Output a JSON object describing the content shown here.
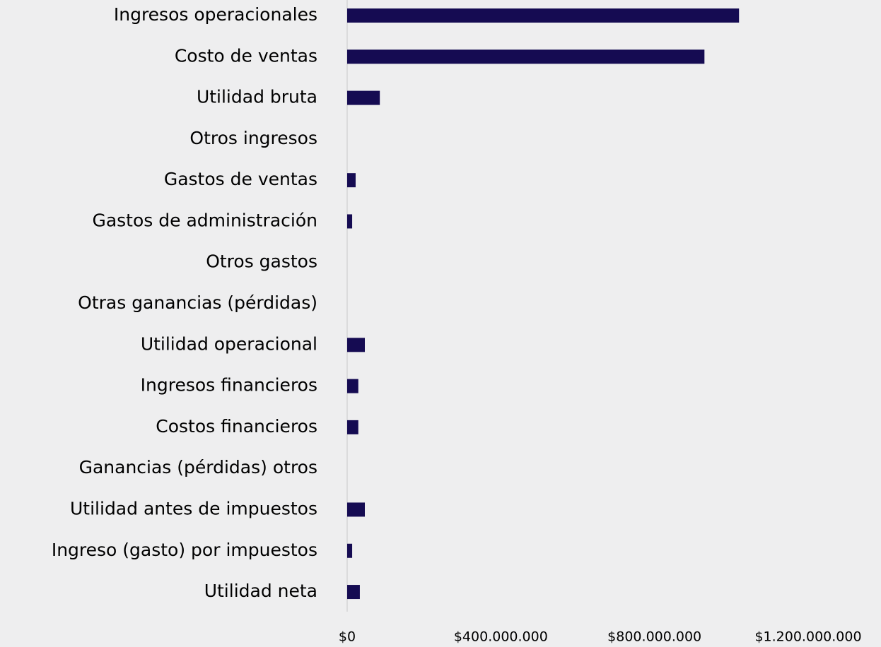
{
  "chart_data": {
    "type": "hbar",
    "categories": [
      "Ingresos operacionales",
      "Costo de ventas",
      "Utilidad bruta",
      "Otros ingresos",
      "Gastos de ventas",
      "Gastos de administración",
      "Otros gastos",
      "Otras ganancias (pérdidas)",
      "Utilidad operacional",
      "Ingresos financieros",
      "Costos financieros",
      "Ganancias (pérdidas) otros",
      "Utilidad antes de impuestos",
      "Ingreso (gasto) por impuestos",
      "Utilidad neta"
    ],
    "values": [
      1020000000,
      930000000,
      85000000,
      0,
      22000000,
      13000000,
      0,
      0,
      46000000,
      29000000,
      29000000,
      0,
      46000000,
      13000000,
      33000000
    ],
    "color": "#150b52",
    "xlim": [
      0,
      1200000000
    ],
    "xticks": [
      {
        "value": 0,
        "label": "$0"
      },
      {
        "value": 400000000,
        "label": "$400.000.000"
      },
      {
        "value": 800000000,
        "label": "$800.000.000"
      },
      {
        "value": 1200000000,
        "label": "$1.200.000.000"
      }
    ],
    "grid": false
  }
}
